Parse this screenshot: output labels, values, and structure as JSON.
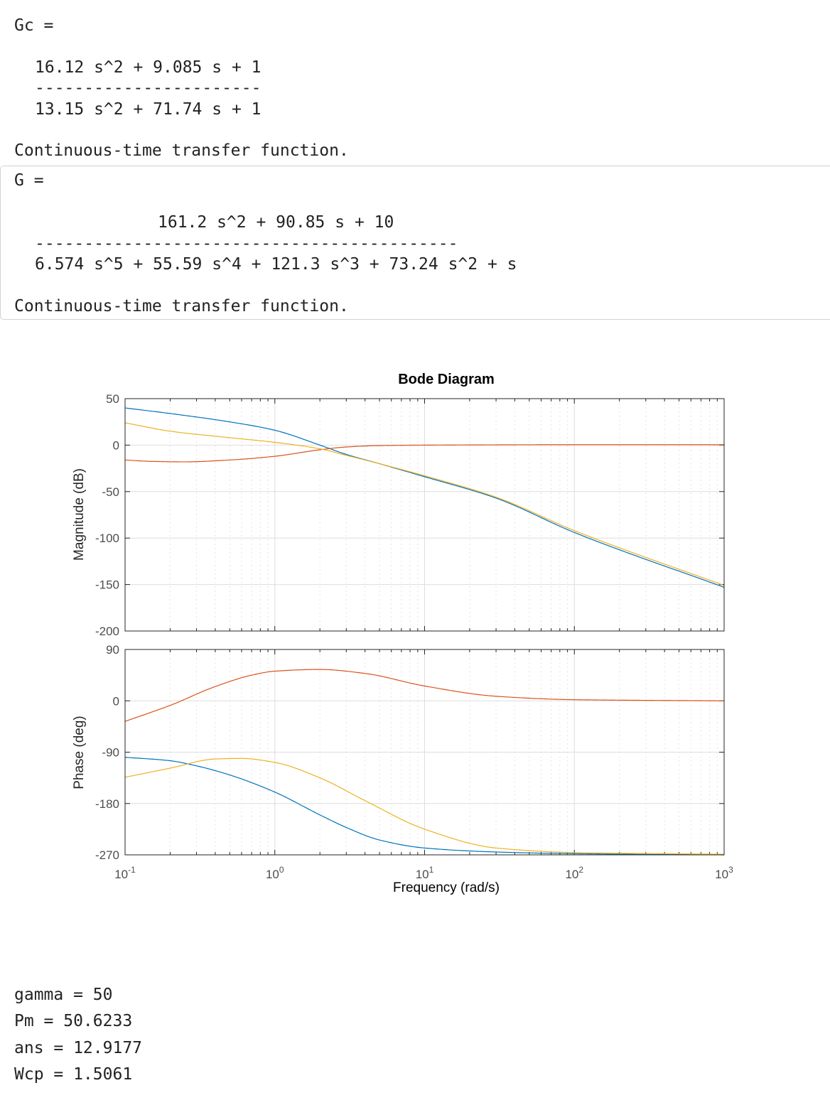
{
  "gc": {
    "label": "Gc =",
    "numerator": "16.12 s^2 + 9.085 s + 1",
    "divider": "-----------------------",
    "denominator": "13.15 s^2 + 71.74 s + 1",
    "type": "Continuous-time transfer function."
  },
  "g": {
    "label": "G =",
    "numerator": "161.2 s^2 + 90.85 s + 10",
    "divider": "-------------------------------------------",
    "denominator": "6.574 s^5 + 55.59 s^4 + 121.3 s^3 + 73.24 s^2 + s",
    "type": "Continuous-time transfer function."
  },
  "results": [
    "gamma = 50",
    "Pm = 50.6233",
    "ans = 12.9177",
    "Wcp = 1.5061"
  ],
  "chart_data": {
    "type": "line",
    "title": "Bode Diagram",
    "xlabel": "Frequency  (rad/s)",
    "xscale": "log",
    "xlim": [
      0.1,
      1000
    ],
    "x_ticks": [
      0.1,
      1,
      10,
      100,
      1000
    ],
    "x_tick_labels": [
      {
        "base": "10",
        "exp": "-1"
      },
      {
        "base": "10",
        "exp": "0"
      },
      {
        "base": "10",
        "exp": "1"
      },
      {
        "base": "10",
        "exp": "2"
      },
      {
        "base": "10",
        "exp": "3"
      }
    ],
    "grid": true,
    "colors": [
      "#0072BD",
      "#D95319",
      "#EDB120"
    ],
    "magnitude": {
      "ylabel": "Magnitude (dB)",
      "ylim": [
        -200,
        50
      ],
      "yticks": [
        50,
        0,
        -50,
        -100,
        -150,
        -200
      ],
      "series": [
        {
          "color": "#0072BD",
          "points": [
            [
              0.1,
              40
            ],
            [
              0.2,
              34
            ],
            [
              0.5,
              25
            ],
            [
              1,
              16
            ],
            [
              2,
              0
            ],
            [
              3,
              -10
            ],
            [
              5,
              -20
            ],
            [
              10,
              -34
            ],
            [
              30,
              -57
            ],
            [
              100,
              -94
            ],
            [
              1000,
              -153
            ]
          ]
        },
        {
          "color": "#D95319",
          "points": [
            [
              0.1,
              -16
            ],
            [
              0.15,
              -17.5
            ],
            [
              0.25,
              -18
            ],
            [
              0.5,
              -16
            ],
            [
              1,
              -12
            ],
            [
              2,
              -5
            ],
            [
              3,
              -2
            ],
            [
              5,
              -0.5
            ],
            [
              10,
              0
            ],
            [
              100,
              0.4
            ],
            [
              1000,
              0.4
            ]
          ]
        },
        {
          "color": "#EDB120",
          "points": [
            [
              0.1,
              24
            ],
            [
              0.2,
              15
            ],
            [
              0.5,
              8
            ],
            [
              1,
              3
            ],
            [
              2,
              -4
            ],
            [
              3,
              -11
            ],
            [
              5,
              -20
            ],
            [
              10,
              -33
            ],
            [
              30,
              -56
            ],
            [
              100,
              -92
            ],
            [
              1000,
              -151
            ]
          ]
        }
      ]
    },
    "phase": {
      "ylabel": "Phase (deg)",
      "ylim": [
        -270,
        90
      ],
      "yticks": [
        90,
        0,
        -90,
        -180,
        -270
      ],
      "series": [
        {
          "color": "#0072BD",
          "points": [
            [
              0.1,
              -99
            ],
            [
              0.2,
              -105
            ],
            [
              0.3,
              -114
            ],
            [
              0.5,
              -130
            ],
            [
              1,
              -160
            ],
            [
              2,
              -200
            ],
            [
              3,
              -222
            ],
            [
              5,
              -244
            ],
            [
              10,
              -258
            ],
            [
              30,
              -265
            ],
            [
              100,
              -268
            ],
            [
              1000,
              -270
            ]
          ]
        },
        {
          "color": "#D95319",
          "points": [
            [
              0.1,
              -36
            ],
            [
              0.2,
              -8
            ],
            [
              0.4,
              25
            ],
            [
              0.7,
              45
            ],
            [
              1,
              52
            ],
            [
              2,
              55
            ],
            [
              4,
              48
            ],
            [
              10,
              26
            ],
            [
              30,
              8
            ],
            [
              100,
              2
            ],
            [
              1000,
              0
            ]
          ]
        },
        {
          "color": "#EDB120",
          "points": [
            [
              0.1,
              -134
            ],
            [
              0.2,
              -118
            ],
            [
              0.4,
              -102
            ],
            [
              0.6,
              -101
            ],
            [
              1,
              -108
            ],
            [
              2,
              -135
            ],
            [
              4,
              -175
            ],
            [
              10,
              -225
            ],
            [
              30,
              -258
            ],
            [
              100,
              -266
            ],
            [
              1000,
              -269
            ]
          ]
        }
      ]
    }
  }
}
